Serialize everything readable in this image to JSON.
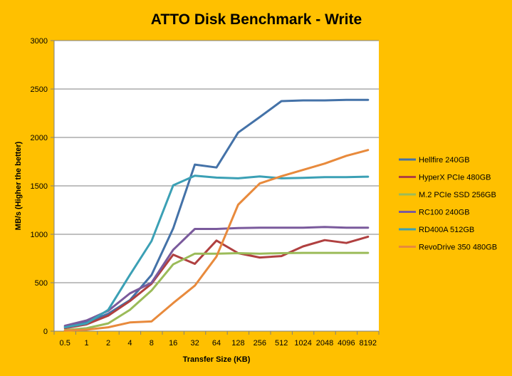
{
  "chart_data": {
    "type": "line",
    "title": "ATTO Disk Benchmark - Write",
    "xlabel": "Transfer Size (KB)",
    "ylabel": "MB/s (Higher the better)",
    "categories": [
      "0.5",
      "1",
      "2",
      "4",
      "8",
      "16",
      "32",
      "64",
      "128",
      "256",
      "512",
      "1024",
      "2048",
      "4096",
      "8192"
    ],
    "ylim": [
      0,
      3000
    ],
    "yticks": [
      0,
      500,
      1000,
      1500,
      2000,
      2500,
      3000
    ],
    "grid": true,
    "legend_position": "right",
    "series": [
      {
        "name": "Hellfire 240GB",
        "color": "#4472A8",
        "values": [
          50,
          90,
          180,
          320,
          580,
          1060,
          1720,
          1690,
          2050,
          2210,
          2375,
          2382,
          2382,
          2388,
          2388
        ]
      },
      {
        "name": "HyperX PCIe 480GB",
        "color": "#B04040",
        "values": [
          30,
          70,
          160,
          310,
          490,
          790,
          695,
          935,
          805,
          760,
          775,
          875,
          940,
          910,
          975
        ]
      },
      {
        "name": "M.2 PCIe SSD 256GB",
        "color": "#9BBB59",
        "values": [
          10,
          30,
          80,
          220,
          420,
          690,
          800,
          800,
          805,
          800,
          805,
          808,
          808,
          808,
          808
        ]
      },
      {
        "name": "RC100 240GB",
        "color": "#7A5A9C",
        "values": [
          55,
          110,
          210,
          390,
          500,
          840,
          1055,
          1055,
          1065,
          1068,
          1068,
          1068,
          1075,
          1068,
          1068
        ]
      },
      {
        "name": "RD400A 512GB",
        "color": "#3BA0B5",
        "values": [
          40,
          80,
          220,
          580,
          930,
          1505,
          1605,
          1585,
          1578,
          1598,
          1578,
          1583,
          1590,
          1590,
          1595
        ]
      },
      {
        "name": "RevoDrive 350 480GB",
        "color": "#E88A3C",
        "values": [
          5,
          15,
          40,
          90,
          100,
          290,
          470,
          770,
          1305,
          1525,
          1600,
          1665,
          1730,
          1810,
          1870
        ]
      }
    ]
  }
}
